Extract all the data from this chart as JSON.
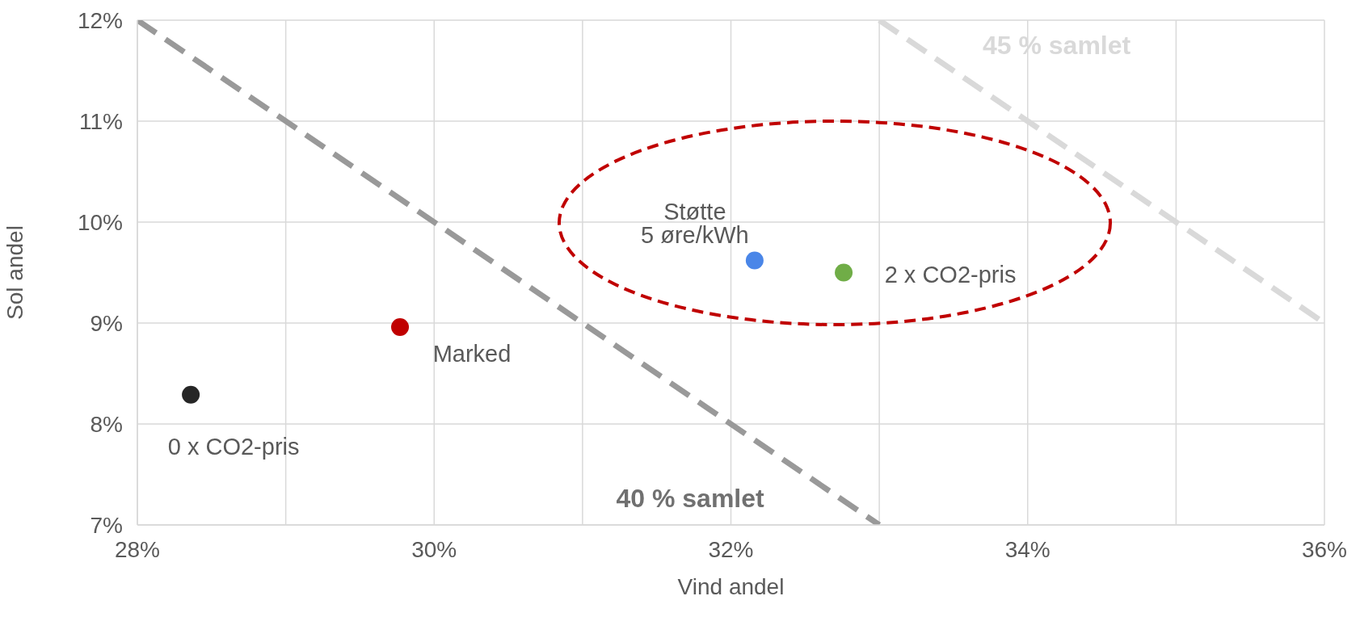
{
  "chart_data": {
    "type": "scatter",
    "xlabel": "Vind andel",
    "ylabel": "Sol andel",
    "xlim": [
      28,
      36
    ],
    "ylim": [
      7,
      12
    ],
    "xticks": [
      {
        "value": 28,
        "label": "28%"
      },
      {
        "value": 29,
        "label": null
      },
      {
        "value": 30,
        "label": "30%"
      },
      {
        "value": 31,
        "label": null
      },
      {
        "value": 32,
        "label": "32%"
      },
      {
        "value": 33,
        "label": null
      },
      {
        "value": 34,
        "label": "34%"
      },
      {
        "value": 35,
        "label": null
      },
      {
        "value": 36,
        "label": "36%"
      }
    ],
    "yticks": [
      {
        "value": 7,
        "label": "7%"
      },
      {
        "value": 8,
        "label": "8%"
      },
      {
        "value": 9,
        "label": "9%"
      },
      {
        "value": 10,
        "label": "10%"
      },
      {
        "value": 11,
        "label": "11%"
      },
      {
        "value": 12,
        "label": "12%"
      }
    ],
    "grid": true,
    "marker": "circle",
    "series": [
      {
        "name": "0 x CO2-pris",
        "color": "#262626",
        "x": [
          28.36
        ],
        "values": [
          8.29
        ]
      },
      {
        "name": "Marked",
        "color": "#c00000",
        "x": [
          29.77
        ],
        "values": [
          8.96
        ]
      },
      {
        "name": "Støtte\n5 øre/kWh",
        "color": "#4a86e8",
        "x": [
          32.16
        ],
        "values": [
          9.62
        ]
      },
      {
        "name": "2 x CO2-pris",
        "color": "#70ad47",
        "x": [
          32.76
        ],
        "values": [
          9.5
        ]
      },
      {
        "type": "line",
        "name": "40 % samlet",
        "color": "#999999",
        "line_style": "dashed",
        "marker": "none",
        "x": [
          28,
          33
        ],
        "values": [
          12,
          7
        ]
      },
      {
        "type": "line",
        "name": "45 % samlet",
        "color": "#d9d9d9",
        "line_style": "dashed",
        "marker": "none",
        "x": [
          33,
          36
        ],
        "values": [
          12,
          9
        ]
      }
    ]
  }
}
